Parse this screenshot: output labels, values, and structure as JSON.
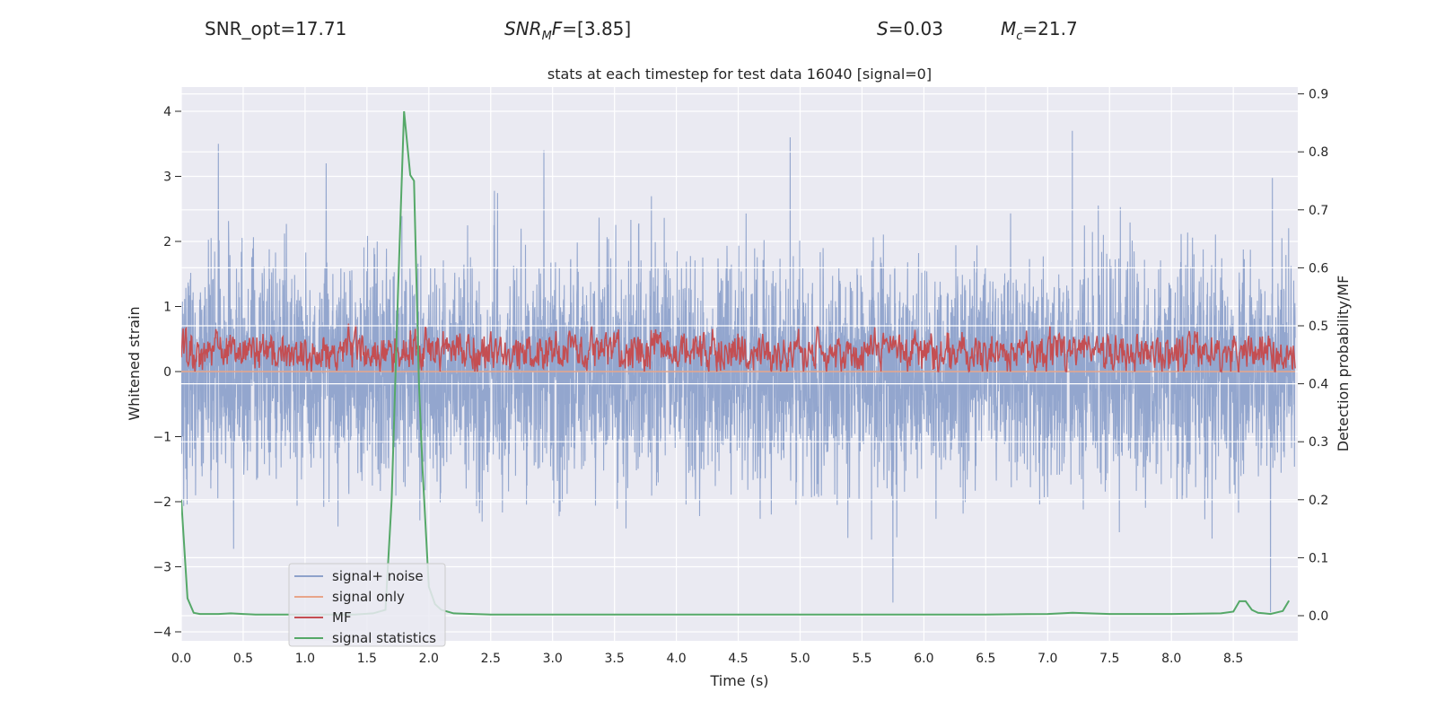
{
  "header": {
    "snr_opt": "SNR_opt=17.71",
    "snr_mf_base": "SNR",
    "snr_mf_sub": "M",
    "snr_mf_tail": "F",
    "snr_mf_value": "=[3.85]",
    "s_sym": "S",
    "s_value": "=0.03",
    "mc_base": "M",
    "mc_sub": "c",
    "mc_value": "=21.7"
  },
  "chart_data": {
    "type": "line",
    "title": "stats at each timestep for test data 16040 [signal=0]",
    "xlabel": "Time (s)",
    "ylabel": "Whitened strain",
    "ylabel_right": "Detection probability/MF",
    "xlim": [
      0,
      9.0
    ],
    "ylim": [
      -4.25,
      4.4
    ],
    "ylim_right": [
      -0.04,
      0.91
    ],
    "x_ticks": [
      0.0,
      0.5,
      1.0,
      1.5,
      2.0,
      2.5,
      3.0,
      3.5,
      4.0,
      4.5,
      5.0,
      5.5,
      6.0,
      6.5,
      7.0,
      7.5,
      8.0,
      8.5
    ],
    "x_tick_labels": [
      "0.0",
      "0.5",
      "1.0",
      "1.5",
      "2.0",
      "2.5",
      "3.0",
      "3.5",
      "4.0",
      "4.5",
      "5.0",
      "5.5",
      "6.0",
      "6.5",
      "7.0",
      "7.5",
      "8.0",
      "8.5"
    ],
    "y_ticks": [
      4,
      3,
      2,
      1,
      0,
      -1,
      -2,
      -3,
      -4
    ],
    "y_tick_labels": [
      "4",
      "3",
      "2",
      "1",
      "0",
      "−1",
      "−2",
      "−3",
      "−4"
    ],
    "y_right_ticks": [
      0.9,
      0.8,
      0.7,
      0.6,
      0.5,
      0.4,
      0.3,
      0.2,
      0.1,
      0.0
    ],
    "y_right_tick_labels": [
      "0.9",
      "0.8",
      "0.7",
      "0.6",
      "0.5",
      "0.4",
      "0.3",
      "0.2",
      "0.1",
      "0.0"
    ],
    "grid": true,
    "legend_position": "lower-left",
    "series": [
      {
        "name": "signal+ noise",
        "color": "#8ea2cb",
        "axis": "left",
        "kind": "dense-noise",
        "sigma": 1.0,
        "peaks_x": [
          0.3,
          1.17,
          2.93,
          4.92,
          5.75,
          7.2,
          8.8
        ],
        "peaks_y": [
          3.5,
          3.2,
          3.4,
          3.6,
          -3.55,
          3.7,
          -3.7
        ]
      },
      {
        "name": "signal only",
        "color": "#e8a58a",
        "axis": "left",
        "x": [
          0,
          9.0
        ],
        "y": [
          0,
          0
        ]
      },
      {
        "name": "MF",
        "color": "#c44e52",
        "axis": "left",
        "kind": "dense-noise",
        "base": 0.3,
        "amp": 0.35,
        "min": 0.0,
        "max": 0.8
      },
      {
        "name": "signal statistics",
        "color": "#55a868",
        "axis": "right",
        "x": [
          0.0,
          0.05,
          0.1,
          0.15,
          0.2,
          0.3,
          0.4,
          0.5,
          0.6,
          0.8,
          1.0,
          1.2,
          1.4,
          1.55,
          1.65,
          1.7,
          1.75,
          1.8,
          1.85,
          1.88,
          1.92,
          1.95,
          2.0,
          2.05,
          2.1,
          2.2,
          2.5,
          3.0,
          3.5,
          4.0,
          4.5,
          5.0,
          5.5,
          6.0,
          6.5,
          7.0,
          7.2,
          7.5,
          8.0,
          8.4,
          8.5,
          8.55,
          8.6,
          8.65,
          8.7,
          8.75,
          8.8,
          8.9,
          8.95
        ],
        "y": [
          0.2,
          0.03,
          0.005,
          0.003,
          0.003,
          0.003,
          0.004,
          0.003,
          0.002,
          0.002,
          0.002,
          0.002,
          0.002,
          0.004,
          0.01,
          0.2,
          0.55,
          0.87,
          0.76,
          0.75,
          0.4,
          0.25,
          0.05,
          0.02,
          0.01,
          0.004,
          0.002,
          0.002,
          0.002,
          0.002,
          0.002,
          0.002,
          0.002,
          0.002,
          0.002,
          0.003,
          0.005,
          0.003,
          0.003,
          0.004,
          0.007,
          0.025,
          0.025,
          0.01,
          0.005,
          0.004,
          0.003,
          0.008,
          0.026
        ]
      }
    ]
  }
}
